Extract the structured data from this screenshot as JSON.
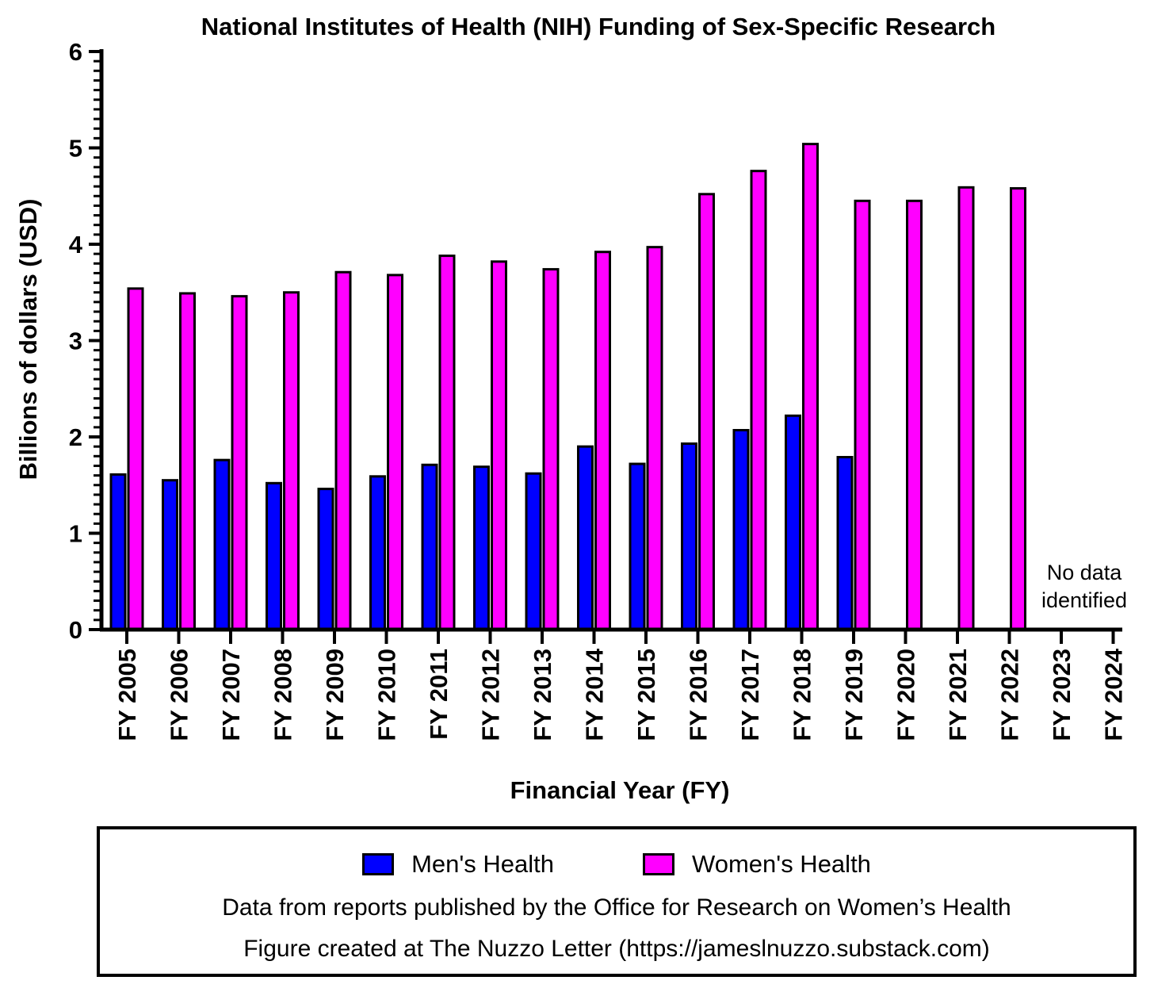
{
  "chart_data": {
    "type": "bar",
    "title": "National Institutes of Health (NIH) Funding of Sex-Specific Research",
    "xlabel": "Financial Year (FY)",
    "ylabel": "Billions of dollars (USD)",
    "ylim": [
      0,
      6
    ],
    "yticks": [
      "0",
      "1",
      "2",
      "3",
      "4",
      "5",
      "6"
    ],
    "grid": false,
    "legend_position": "bottom",
    "categories": [
      "FY 2005",
      "FY 2006",
      "FY 2007",
      "FY 2008",
      "FY 2009",
      "FY 2010",
      "FY 2011",
      "FY 2012",
      "FY 2013",
      "FY 2014",
      "FY 2015",
      "FY 2016",
      "FY 2017",
      "FY 2018",
      "FY 2019",
      "FY 2020",
      "FY 2021",
      "FY 2022",
      "FY 2023",
      "FY 2024"
    ],
    "series": [
      {
        "name": "Men's Health",
        "color": "#0000ff",
        "values": [
          1.61,
          1.55,
          1.76,
          1.52,
          1.46,
          1.59,
          1.71,
          1.69,
          1.62,
          1.9,
          1.72,
          1.93,
          2.07,
          2.22,
          1.79,
          null,
          null,
          null,
          null,
          null
        ]
      },
      {
        "name": "Women's Health",
        "color": "#ff00ff",
        "values": [
          3.54,
          3.49,
          3.46,
          3.5,
          3.71,
          3.68,
          3.88,
          3.82,
          3.74,
          3.92,
          3.97,
          4.52,
          4.76,
          5.04,
          4.45,
          4.45,
          4.59,
          4.58,
          null,
          null
        ]
      }
    ],
    "annotation": {
      "text_line1": "No data",
      "text_line2": "identified",
      "categories": [
        "FY 2023",
        "FY 2024"
      ]
    }
  },
  "legend": {
    "note_1": "Data from reports published by the Office for Research on Women’s Health",
    "note_2": "Figure created at The Nuzzo Letter (https://jameslnuzzo.substack.com)"
  }
}
